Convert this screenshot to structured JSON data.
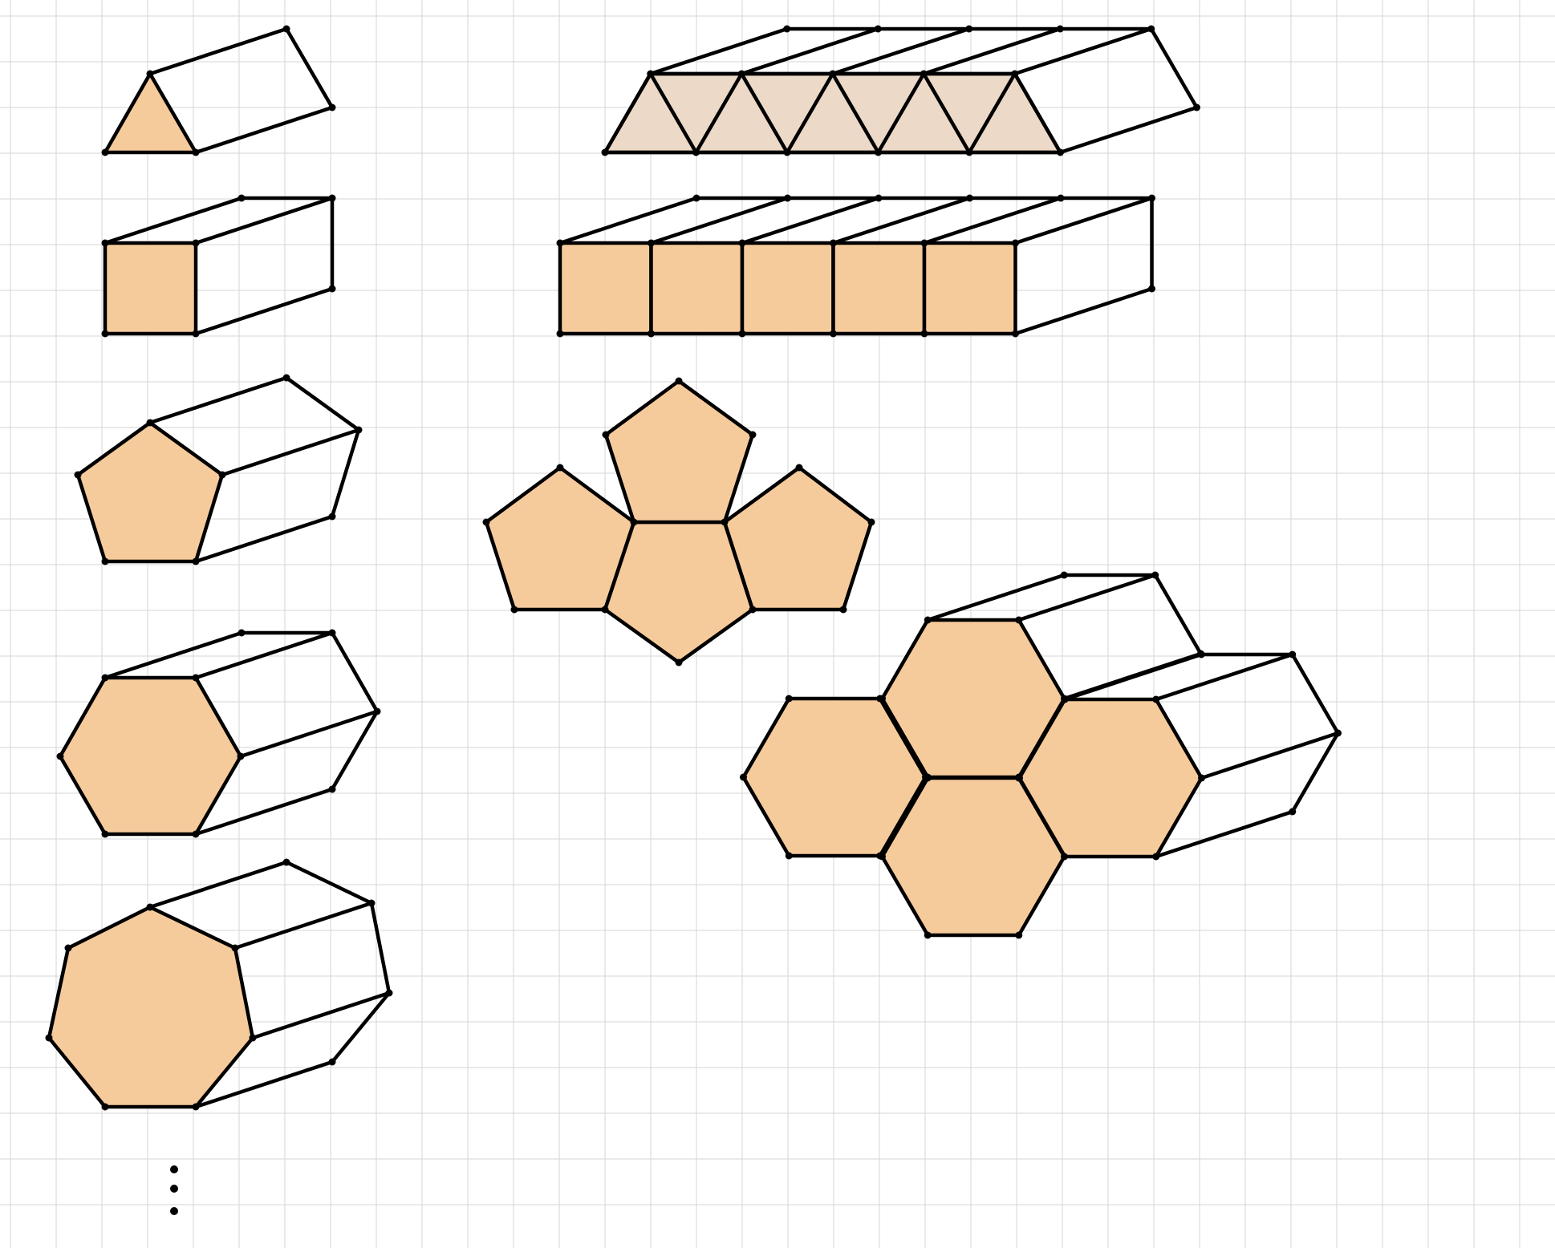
{
  "canvas": {
    "background": "#ffffff",
    "grid_color": "#d6d6d6",
    "fill_color": "#f6cb9c",
    "fill_color_light": "#edd9c7",
    "stroke_color": "#000000"
  },
  "left_column": [
    {
      "base": "triangle",
      "sides": 3,
      "type": "prism"
    },
    {
      "base": "square",
      "sides": 4,
      "type": "prism"
    },
    {
      "base": "pentagon",
      "sides": 5,
      "type": "prism"
    },
    {
      "base": "hexagon",
      "sides": 6,
      "type": "prism"
    },
    {
      "base": "heptagon",
      "sides": 7,
      "type": "prism"
    }
  ],
  "right_column": [
    {
      "tile": "triangle",
      "count": 9,
      "type": "tiled strip prism"
    },
    {
      "tile": "square",
      "count": 5,
      "type": "tiled strip prism"
    },
    {
      "tile": "pentagon",
      "count": 4,
      "type": "pentagon cluster"
    },
    {
      "tile": "hexagon",
      "count": 4,
      "type": "hexagon cluster with prisms"
    }
  ],
  "continuation": "vertical-ellipsis"
}
